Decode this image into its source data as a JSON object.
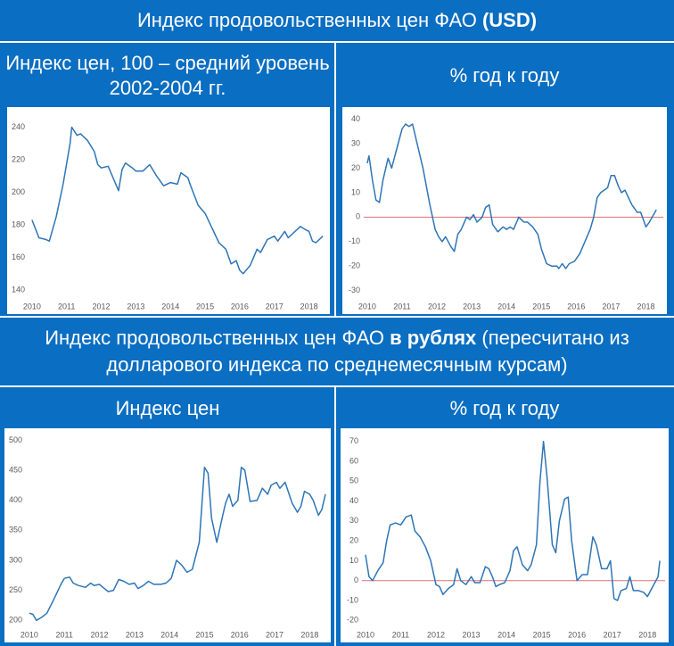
{
  "headers": [
    {
      "text": "Индекс продовольственных цен ФАО",
      "bold": "(USD)"
    },
    {
      "text": "Индекс продовольственных цен ФАО",
      "bold": "в рублях",
      "text_after": "(пересчитано из долларового индекса по среднемесячным курсам)"
    }
  ],
  "chart_data": [
    {
      "type": "line",
      "title": "Индекс цен, 100 – средний уровень 2002-2004 гг.",
      "color": "#2e75b6",
      "x": [
        2010.0,
        2010.2,
        2010.4,
        2010.5,
        2010.7,
        2010.9,
        2011.1,
        2011.15,
        2011.3,
        2011.4,
        2011.6,
        2011.8,
        2011.9,
        2012.0,
        2012.2,
        2012.4,
        2012.5,
        2012.6,
        2012.7,
        2012.9,
        2013.0,
        2013.2,
        2013.4,
        2013.6,
        2013.8,
        2014.0,
        2014.2,
        2014.3,
        2014.5,
        2014.6,
        2014.8,
        2015.0,
        2015.2,
        2015.4,
        2015.6,
        2015.75,
        2015.9,
        2016.0,
        2016.1,
        2016.3,
        2016.5,
        2016.6,
        2016.8,
        2017.0,
        2017.1,
        2017.3,
        2017.4,
        2017.6,
        2017.75,
        2017.9,
        2018.0,
        2018.1,
        2018.2,
        2018.4
      ],
      "values": [
        183,
        172,
        171,
        170,
        185,
        205,
        230,
        240,
        235,
        236,
        232,
        225,
        217,
        215,
        216,
        206,
        201,
        214,
        218,
        215,
        213,
        213,
        217,
        210,
        204,
        206,
        205,
        212,
        209,
        203,
        192,
        187,
        178,
        169,
        165,
        156,
        158,
        152,
        150,
        155,
        165,
        163,
        171,
        173,
        170,
        176,
        172,
        176,
        179,
        177,
        176,
        170,
        169,
        173
      ],
      "xlim": [
        2009.9,
        2018.5
      ],
      "xticks": [
        2010,
        2011,
        2012,
        2013,
        2014,
        2015,
        2016,
        2017,
        2018
      ],
      "ylim": [
        135,
        248
      ],
      "yticks": [
        140,
        160,
        180,
        200,
        220,
        240
      ],
      "grid": false
    },
    {
      "type": "line",
      "title": "% год к году",
      "color": "#2e75b6",
      "hline": {
        "value": 0,
        "color": "#e07070"
      },
      "x": [
        2010.0,
        2010.05,
        2010.15,
        2010.25,
        2010.35,
        2010.45,
        2010.6,
        2010.7,
        2010.85,
        2011.0,
        2011.1,
        2011.2,
        2011.3,
        2011.4,
        2011.6,
        2011.8,
        2011.95,
        2012.05,
        2012.15,
        2012.25,
        2012.4,
        2012.5,
        2012.6,
        2012.7,
        2012.85,
        2012.95,
        2013.05,
        2013.15,
        2013.3,
        2013.4,
        2013.5,
        2013.6,
        2013.75,
        2013.9,
        2014.0,
        2014.1,
        2014.2,
        2014.35,
        2014.5,
        2014.6,
        2014.75,
        2014.9,
        2015.0,
        2015.15,
        2015.3,
        2015.45,
        2015.5,
        2015.6,
        2015.7,
        2015.8,
        2015.95,
        2016.1,
        2016.25,
        2016.4,
        2016.5,
        2016.6,
        2016.7,
        2016.8,
        2016.9,
        2017.0,
        2017.1,
        2017.2,
        2017.3,
        2017.4,
        2017.5,
        2017.6,
        2017.75,
        2017.85,
        2018.0,
        2018.1,
        2018.3
      ],
      "values": [
        22,
        25,
        15,
        7,
        6,
        15,
        24,
        20,
        28,
        36,
        38,
        37,
        38,
        32,
        20,
        5,
        -5,
        -8,
        -10,
        -8,
        -12,
        -14,
        -7,
        -5,
        0,
        -1,
        1,
        -2,
        0,
        4,
        5,
        -3,
        -6,
        -4,
        -5,
        -4,
        -5,
        0,
        -2,
        -2,
        -4,
        -7,
        -13,
        -19,
        -20,
        -20,
        -21,
        -19,
        -21,
        -19,
        -18,
        -15,
        -10,
        -5,
        0,
        8,
        10,
        11,
        12,
        17,
        17,
        13,
        10,
        11,
        8,
        5,
        2,
        2,
        -4,
        -2,
        3
      ],
      "xlim": [
        2009.9,
        2018.5
      ],
      "xticks": [
        2010,
        2011,
        2012,
        2013,
        2014,
        2015,
        2016,
        2017,
        2018
      ],
      "ylim": [
        -33,
        42
      ],
      "yticks": [
        -30,
        -20,
        -10,
        0,
        10,
        20,
        30,
        40
      ],
      "grid": false
    },
    {
      "type": "line",
      "title": "Индекс цен",
      "color": "#2e75b6",
      "x": [
        2010.0,
        2010.1,
        2010.2,
        2010.35,
        2010.5,
        2010.7,
        2010.9,
        2011.0,
        2011.15,
        2011.25,
        2011.4,
        2011.6,
        2011.75,
        2011.85,
        2012.0,
        2012.1,
        2012.25,
        2012.4,
        2012.55,
        2012.7,
        2012.85,
        2013.0,
        2013.1,
        2013.25,
        2013.4,
        2013.55,
        2013.75,
        2013.9,
        2014.05,
        2014.2,
        2014.35,
        2014.5,
        2014.65,
        2014.85,
        2015.0,
        2015.1,
        2015.2,
        2015.35,
        2015.5,
        2015.6,
        2015.7,
        2015.8,
        2015.95,
        2016.05,
        2016.15,
        2016.3,
        2016.5,
        2016.65,
        2016.8,
        2016.9,
        2017.05,
        2017.15,
        2017.3,
        2017.5,
        2017.65,
        2017.75,
        2017.85,
        2018.0,
        2018.1,
        2018.25,
        2018.35,
        2018.45
      ],
      "values": [
        212,
        210,
        200,
        205,
        212,
        235,
        260,
        270,
        272,
        262,
        258,
        255,
        262,
        258,
        260,
        255,
        248,
        250,
        268,
        265,
        260,
        262,
        253,
        258,
        265,
        260,
        260,
        262,
        270,
        300,
        292,
        280,
        285,
        330,
        455,
        445,
        370,
        330,
        370,
        395,
        410,
        390,
        400,
        455,
        450,
        398,
        400,
        420,
        410,
        425,
        430,
        420,
        430,
        395,
        380,
        390,
        415,
        410,
        400,
        375,
        385,
        410
      ],
      "xlim": [
        2009.9,
        2018.5
      ],
      "xticks": [
        2010,
        2011,
        2012,
        2013,
        2014,
        2015,
        2016,
        2017,
        2018
      ],
      "ylim": [
        190,
        508
      ],
      "yticks": [
        200,
        250,
        300,
        350,
        400,
        450,
        500
      ],
      "grid": false
    },
    {
      "type": "line",
      "title": "% год к году",
      "color": "#2e75b6",
      "hline": {
        "value": 0,
        "color": "#e07070"
      },
      "x": [
        2010.0,
        2010.1,
        2010.2,
        2010.35,
        2010.5,
        2010.6,
        2010.7,
        2010.85,
        2011.0,
        2011.15,
        2011.3,
        2011.4,
        2011.55,
        2011.7,
        2011.85,
        2012.0,
        2012.1,
        2012.2,
        2012.35,
        2012.5,
        2012.6,
        2012.7,
        2012.85,
        2013.0,
        2013.1,
        2013.25,
        2013.4,
        2013.5,
        2013.6,
        2013.7,
        2013.8,
        2013.95,
        2014.1,
        2014.2,
        2014.3,
        2014.45,
        2014.6,
        2014.7,
        2014.85,
        2014.95,
        2015.05,
        2015.15,
        2015.3,
        2015.4,
        2015.5,
        2015.65,
        2015.75,
        2015.85,
        2016.0,
        2016.15,
        2016.3,
        2016.45,
        2016.55,
        2016.7,
        2016.85,
        2016.95,
        2017.05,
        2017.15,
        2017.25,
        2017.4,
        2017.5,
        2017.6,
        2017.75,
        2017.9,
        2018.0,
        2018.15,
        2018.3,
        2018.35
      ],
      "values": [
        13,
        2,
        0,
        5,
        9,
        20,
        28,
        29,
        28,
        32,
        33,
        25,
        22,
        17,
        10,
        -2,
        -3,
        -7,
        -4,
        -2,
        6,
        0,
        -2,
        2,
        -1,
        -1,
        7,
        6,
        2,
        -3,
        -2,
        -1,
        5,
        15,
        17,
        8,
        5,
        8,
        18,
        50,
        70,
        52,
        18,
        14,
        30,
        41,
        42,
        20,
        0,
        3,
        3,
        22,
        18,
        6,
        6,
        10,
        -9,
        -10,
        -5,
        -4,
        2,
        -5,
        -5,
        -6,
        -8,
        -3,
        2,
        10
      ],
      "xlim": [
        2009.9,
        2018.5
      ],
      "xticks": [
        2010,
        2011,
        2012,
        2013,
        2014,
        2015,
        2016,
        2017,
        2018
      ],
      "ylim": [
        -23,
        73
      ],
      "yticks": [
        -20,
        -10,
        0,
        10,
        20,
        30,
        40,
        50,
        60,
        70
      ],
      "grid": false
    }
  ]
}
